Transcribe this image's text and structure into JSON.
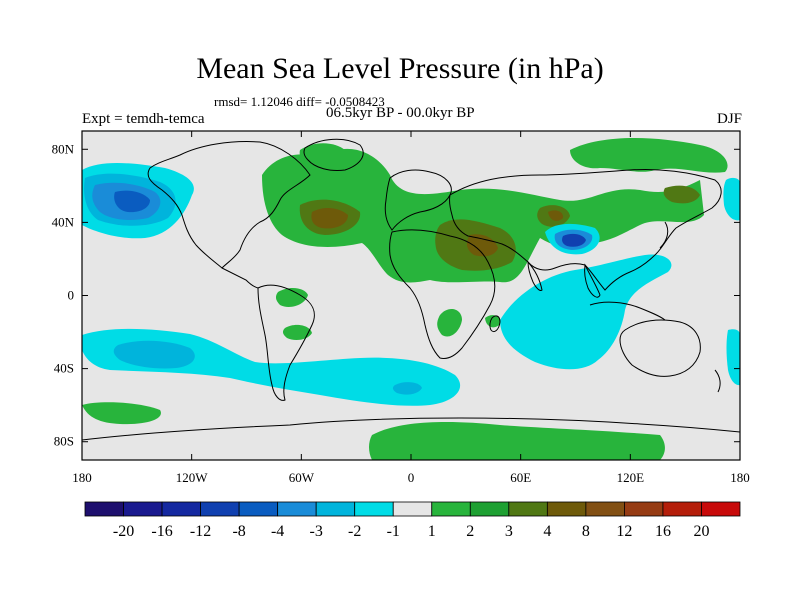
{
  "title": "Mean Sea Level Pressure (in hPa)",
  "stats_line": "rmsd= 1.12046 diff= -0.0508423",
  "experiment": "Expt = temdh-temca",
  "period": "06.5kyr BP - 00.0kyr BP",
  "season": "DJF",
  "map": {
    "lon_ticks": [
      "180",
      "120W",
      "60W",
      "0",
      "60E",
      "120E",
      "180"
    ],
    "lat_ticks": [
      "80N",
      "40N",
      "0",
      "40S",
      "80S"
    ],
    "background_color": "#e6e6e6",
    "coast_color": "#000000"
  },
  "colorbar": {
    "colors": [
      "#1e0f6e",
      "#1a1a8f",
      "#1428a0",
      "#1040b0",
      "#0a5cc0",
      "#1a8cd8",
      "#00b4dc",
      "#00dce6",
      "#e6e6e6",
      "#28b43c",
      "#1ea032",
      "#507814",
      "#6e5a0a",
      "#825014",
      "#963c14",
      "#b41e0a",
      "#c80a0a"
    ],
    "labels": [
      "-20",
      "-16",
      "-12",
      "-8",
      "-4",
      "-3",
      "-2",
      "-1",
      "1",
      "2",
      "3",
      "4",
      "8",
      "12",
      "16",
      "20"
    ]
  }
}
